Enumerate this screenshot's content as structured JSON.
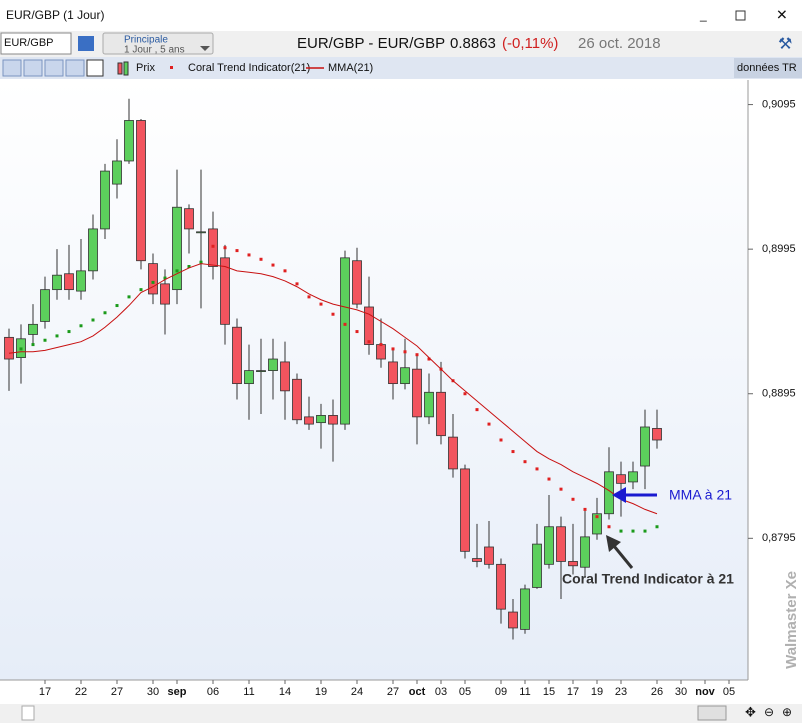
{
  "ui": {
    "window_title": "EUR/GBP (1 Jour)",
    "symbol_input": "EUR/GBP",
    "layout_name": "Principale",
    "layout_period": "1 Jour , 5 ans",
    "header_symbol": "EUR/GBP - EUR/GBP",
    "header_price": "0.8863",
    "header_change": "(-0,11%)",
    "header_date": "26 oct. 2018",
    "data_mode": "données TR",
    "watermark": "Walmaster Xe"
  },
  "chart_data": {
    "type": "candlestick",
    "name": "Prix",
    "up_color": "#5ccf5c",
    "down_color": "#f2545e",
    "categories": [
      null,
      null,
      null,
      "17",
      null,
      null,
      "22",
      null,
      null,
      "27",
      null,
      null,
      "30",
      null,
      "sep",
      null,
      null,
      "06",
      null,
      null,
      "11",
      null,
      null,
      "14",
      null,
      null,
      "19",
      null,
      null,
      "24",
      null,
      null,
      "27",
      null,
      "oct",
      null,
      "03",
      null,
      "05",
      null,
      null,
      "09",
      null,
      "11",
      null,
      "15",
      null,
      "17",
      null,
      "19",
      null,
      "23",
      null,
      null,
      "26",
      null,
      "30",
      null,
      "nov",
      null,
      "05"
    ],
    "open": [
      0.8934,
      0.892,
      0.8936,
      0.8945,
      0.8967,
      0.8978,
      0.8966,
      0.898,
      0.9009,
      0.904,
      0.9056,
      0.9084,
      0.8985,
      0.8971,
      0.8967,
      0.9023,
      0.9007,
      0.9009,
      0.8989,
      0.8941,
      0.8902,
      0.8911,
      0.8911,
      0.8917,
      0.8905,
      0.8879,
      0.8875,
      0.888,
      0.8874,
      0.8987,
      0.8955,
      0.8929,
      0.8917,
      0.8902,
      0.8912,
      0.8879,
      0.8896,
      0.8865,
      0.8843,
      0.8781,
      0.8789,
      0.8777,
      0.8744,
      0.8732,
      0.8761,
      0.8777,
      0.8803,
      0.8779,
      0.8775,
      0.8798,
      0.8812,
      0.8839,
      0.8834,
      0.8845,
      0.8871,
      null,
      null,
      null,
      null,
      null,
      null
    ],
    "high": [
      0.894,
      0.8943,
      0.8957,
      0.8976,
      0.8995,
      0.8998,
      0.9002,
      0.9019,
      0.9054,
      0.9071,
      0.9099,
      0.9085,
      0.8992,
      0.8981,
      0.905,
      0.9026,
      0.905,
      0.9021,
      0.8998,
      0.8947,
      0.8929,
      0.8933,
      0.8933,
      0.8931,
      0.8909,
      0.8893,
      0.8888,
      0.8891,
      0.8994,
      0.8996,
      0.8976,
      0.8947,
      0.8926,
      0.8933,
      0.8922,
      0.8909,
      0.8917,
      0.8881,
      0.8846,
      0.8805,
      0.8807,
      0.8781,
      0.8753,
      0.8763,
      0.8805,
      0.8825,
      0.881,
      0.8805,
      0.8814,
      0.8823,
      0.8858,
      0.8848,
      0.8848,
      0.8884,
      0.8884,
      null,
      null,
      null,
      null,
      null,
      null
    ],
    "low": [
      0.8897,
      0.8902,
      0.8929,
      0.894,
      0.896,
      0.896,
      0.896,
      0.8974,
      0.9002,
      0.903,
      0.9054,
      0.8981,
      0.8957,
      0.8936,
      0.8957,
      0.8992,
      0.8954,
      0.8974,
      0.8929,
      0.8891,
      0.8877,
      0.8881,
      0.8891,
      0.8877,
      0.8874,
      0.887,
      0.8857,
      0.8848,
      0.887,
      0.8954,
      0.8922,
      0.8913,
      0.8891,
      0.8898,
      0.886,
      0.8874,
      0.886,
      0.8837,
      0.8781,
      0.8775,
      0.8774,
      0.8736,
      0.8725,
      0.8729,
      0.876,
      0.8774,
      0.8753,
      0.877,
      0.8768,
      0.8794,
      0.8808,
      0.881,
      0.8829,
      0.8829,
      0.8857,
      null,
      null,
      null,
      null,
      null,
      null
    ],
    "close": [
      0.8919,
      0.8933,
      0.8943,
      0.8967,
      0.8977,
      0.8967,
      0.898,
      0.9009,
      0.9049,
      0.9056,
      0.9084,
      0.8987,
      0.8964,
      0.8957,
      0.9024,
      0.9009,
      0.9007,
      0.8983,
      0.8943,
      0.8902,
      0.8911,
      0.8911,
      0.8919,
      0.8897,
      0.8877,
      0.8874,
      0.888,
      0.8874,
      0.8989,
      0.8957,
      0.8929,
      0.8919,
      0.8902,
      0.8913,
      0.8879,
      0.8896,
      0.8866,
      0.8843,
      0.8786,
      0.8779,
      0.8777,
      0.8746,
      0.8733,
      0.876,
      0.8791,
      0.8803,
      0.8779,
      0.8776,
      0.8796,
      0.8812,
      0.8841,
      0.8833,
      0.8841,
      0.8872,
      0.8863,
      null,
      null,
      null,
      null,
      null,
      null
    ],
    "series": [
      {
        "name": "Coral Trend Indicator(21)",
        "type": "dots",
        "color": "#e02020",
        "values": [
          null,
          0.8926,
          0.8929,
          0.8932,
          0.8935,
          0.8938,
          0.8942,
          0.8946,
          0.8951,
          0.8956,
          0.8962,
          0.8967,
          0.8972,
          0.8975,
          0.898,
          0.8983,
          0.8986,
          0.8997,
          0.8996,
          0.8994,
          0.8991,
          0.8988,
          0.8984,
          0.898,
          0.8971,
          0.8962,
          0.8957,
          0.895,
          0.8943,
          0.8938,
          0.8931,
          0.8929,
          0.8926,
          0.8924,
          0.8922,
          0.8919,
          0.8912,
          0.8904,
          0.8895,
          0.8884,
          0.8874,
          0.8863,
          0.8855,
          0.8848,
          0.8843,
          0.8836,
          0.8829,
          0.8822,
          0.8815,
          0.881,
          0.8803,
          0.88,
          0.88,
          0.88,
          0.8803,
          null,
          null,
          null,
          null,
          null,
          null
        ],
        "colors": [
          null,
          "#1a9a1a",
          "#1a9a1a",
          "#1a9a1a",
          "#1a9a1a",
          "#1a9a1a",
          "#1a9a1a",
          "#1a9a1a",
          "#1a9a1a",
          "#1a9a1a",
          "#1a9a1a",
          "#1a9a1a",
          "#1a9a1a",
          "#1a9a1a",
          "#1a9a1a",
          "#1a9a1a",
          "#1a9a1a",
          "#e02020",
          "#e02020",
          "#e02020",
          "#e02020",
          "#e02020",
          "#e02020",
          "#e02020",
          "#e02020",
          "#e02020",
          "#e02020",
          "#e02020",
          "#e02020",
          "#e02020",
          "#e02020",
          "#e02020",
          "#e02020",
          "#e02020",
          "#e02020",
          "#e02020",
          "#e02020",
          "#e02020",
          "#e02020",
          "#e02020",
          "#e02020",
          "#e02020",
          "#e02020",
          "#e02020",
          "#e02020",
          "#e02020",
          "#e02020",
          "#e02020",
          "#e02020",
          "#e02020",
          "#e02020",
          "#1a9a1a",
          "#1a9a1a",
          "#1a9a1a",
          "#1a9a1a",
          null,
          null,
          null,
          null,
          null,
          null
        ]
      },
      {
        "name": "MMA(21)",
        "type": "line",
        "color": "#c81010",
        "values": [
          0.8923,
          0.8924,
          0.8924,
          0.8925,
          0.8927,
          0.8929,
          0.8931,
          0.8935,
          0.8941,
          0.8948,
          0.8956,
          0.8965,
          0.8969,
          0.8974,
          0.8978,
          0.8982,
          0.8985,
          0.8984,
          0.8983,
          0.898,
          0.8979,
          0.8978,
          0.8976,
          0.8973,
          0.8969,
          0.8964,
          0.896,
          0.8957,
          0.8955,
          0.8953,
          0.895,
          0.8945,
          0.894,
          0.8934,
          0.8928,
          0.892,
          0.8912,
          0.8904,
          0.8897,
          0.889,
          0.8883,
          0.8876,
          0.8869,
          0.8862,
          0.8855,
          0.885,
          0.8846,
          0.8841,
          0.8837,
          0.8833,
          0.8828,
          0.8822,
          0.8819,
          0.8815,
          0.8812,
          null,
          null,
          null,
          null,
          null,
          null
        ]
      }
    ],
    "ylim": [
      0.8697,
      0.9112
    ],
    "yticks": [
      {
        "value": 0.8795,
        "label": "0,8795"
      },
      {
        "value": 0.8895,
        "label": "0,8895"
      },
      {
        "value": 0.8995,
        "label": "0,8995"
      },
      {
        "value": 0.9095,
        "label": "0,9095"
      }
    ],
    "annotations": [
      {
        "text": "MMA à 21",
        "color": "#1a1ad0"
      },
      {
        "text": "Coral Trend Indicator à 21",
        "color": "#333333"
      }
    ]
  }
}
